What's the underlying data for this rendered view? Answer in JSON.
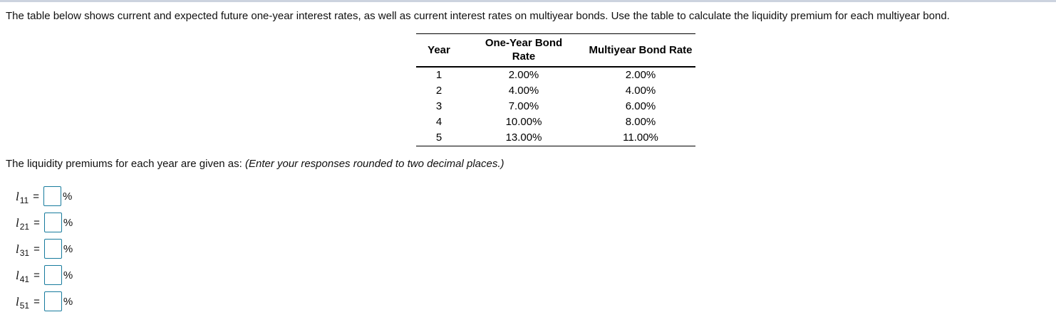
{
  "question": {
    "intro": "The table below shows current and expected future one-year interest rates, as well as current interest rates on multiyear bonds. Use the table to calculate the liquidity premium for each multiyear bond.",
    "prompt": "The liquidity premiums for each year are given as: ",
    "prompt_note": "(Enter your responses rounded to two decimal places.)"
  },
  "table": {
    "headers": {
      "year": "Year",
      "one_year": "One-Year Bond\nRate",
      "multiyear": "Multiyear Bond Rate"
    },
    "rows": [
      {
        "year": "1",
        "one_year": "2.00%",
        "multiyear": "2.00%"
      },
      {
        "year": "2",
        "one_year": "4.00%",
        "multiyear": "4.00%"
      },
      {
        "year": "3",
        "one_year": "7.00%",
        "multiyear": "6.00%"
      },
      {
        "year": "4",
        "one_year": "10.00%",
        "multiyear": "8.00%"
      },
      {
        "year": "5",
        "one_year": "13.00%",
        "multiyear": "11.00%"
      }
    ]
  },
  "answers": {
    "rows": [
      {
        "symbol": "l",
        "sub": "11",
        "eq": "=",
        "value": "",
        "unit": "%"
      },
      {
        "symbol": "l",
        "sub": "21",
        "eq": "=",
        "value": "",
        "unit": "%"
      },
      {
        "symbol": "l",
        "sub": "31",
        "eq": "=",
        "value": "",
        "unit": "%"
      },
      {
        "symbol": "l",
        "sub": "41",
        "eq": "=",
        "value": "",
        "unit": "%"
      },
      {
        "symbol": "l",
        "sub": "51",
        "eq": "=",
        "value": "",
        "unit": "%"
      }
    ]
  },
  "colors": {
    "input_border": "#177b9d",
    "top_bar": "#ccd3df",
    "table_border": "#000000"
  }
}
